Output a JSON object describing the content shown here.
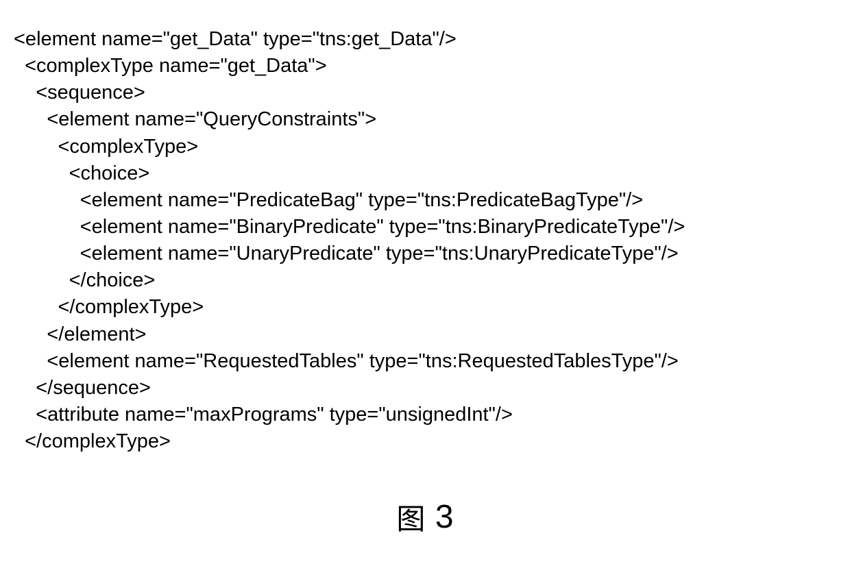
{
  "code": {
    "font_size": 29,
    "text_color": "#000000",
    "background_color": "#ffffff",
    "indent_unit": "  ",
    "lines": [
      {
        "indent": 0,
        "text": "<element name=\"get_Data\" type=\"tns:get_Data\"/>"
      },
      {
        "indent": 1,
        "text": "<complexType name=\"get_Data\">"
      },
      {
        "indent": 2,
        "text": "<sequence>"
      },
      {
        "indent": 3,
        "text": "<element name=\"QueryConstraints\">"
      },
      {
        "indent": 4,
        "text": "<complexType>"
      },
      {
        "indent": 5,
        "text": "<choice>"
      },
      {
        "indent": 6,
        "text": "<element name=\"PredicateBag\" type=\"tns:PredicateBagType\"/>"
      },
      {
        "indent": 6,
        "text": "<element name=\"BinaryPredicate\" type=\"tns:BinaryPredicateType\"/>"
      },
      {
        "indent": 6,
        "text": "<element name=\"UnaryPredicate\" type=\"tns:UnaryPredicateType\"/>"
      },
      {
        "indent": 5,
        "text": "</choice>"
      },
      {
        "indent": 4,
        "text": "</complexType>"
      },
      {
        "indent": 3,
        "text": "</element>"
      },
      {
        "indent": 3,
        "text": "<element name=\"RequestedTables\" type=\"tns:RequestedTablesType\"/>"
      },
      {
        "indent": 2,
        "text": "</sequence>"
      },
      {
        "indent": 2,
        "text": "<attribute name=\"maxPrograms\" type=\"unsignedInt\"/>"
      },
      {
        "indent": 1,
        "text": "</complexType>"
      }
    ]
  },
  "figure": {
    "label_char": "图",
    "number": "3",
    "char_font_size": 42,
    "number_font_size": 48,
    "text_color": "#000000"
  }
}
